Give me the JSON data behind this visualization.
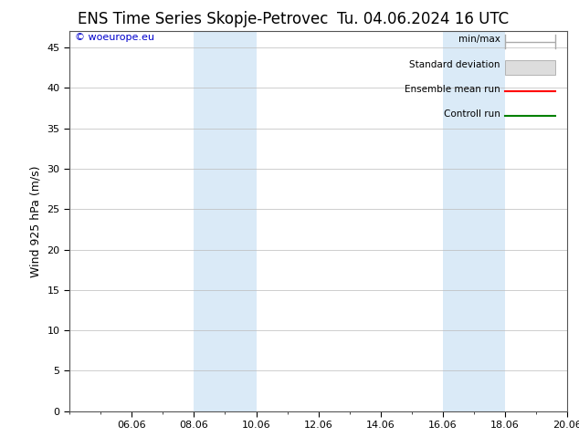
{
  "title": "ENS Time Series Skopje-Petrovec",
  "title_right": "Tu. 04.06.2024 16 UTC",
  "ylabel": "Wind 925 hPa (m/s)",
  "watermark": "© woeurope.eu",
  "ylim": [
    0,
    47
  ],
  "yticks": [
    0,
    5,
    10,
    15,
    20,
    25,
    30,
    35,
    40,
    45
  ],
  "x_labels": [
    "06.06",
    "08.06",
    "10.06",
    "12.06",
    "14.06",
    "16.06",
    "18.06",
    "20.06"
  ],
  "x_ticks_positions": [
    2,
    4,
    6,
    8,
    10,
    12,
    14,
    16
  ],
  "x_minor_ticks": [
    0,
    1,
    2,
    3,
    4,
    5,
    6,
    7,
    8,
    9,
    10,
    11,
    12,
    13,
    14,
    15,
    16
  ],
  "shaded_regions": [
    {
      "x_start": 4,
      "x_end": 6,
      "color": "#daeaf7"
    },
    {
      "x_start": 12,
      "x_end": 14,
      "color": "#daeaf7"
    }
  ],
  "bg_color": "#ffffff",
  "plot_bg_color": "#ffffff",
  "grid_color": "#bbbbbb",
  "spine_color": "#555555",
  "legend_items": [
    {
      "label": "min/max",
      "color": "#aaaaaa",
      "style": "minmax"
    },
    {
      "label": "Standard deviation",
      "color": "#cccccc",
      "style": "stddev"
    },
    {
      "label": "Ensemble mean run",
      "color": "#ff0000",
      "style": "line"
    },
    {
      "label": "Controll run",
      "color": "#008000",
      "style": "line"
    }
  ],
  "title_fontsize": 12,
  "tick_fontsize": 8,
  "label_fontsize": 9,
  "legend_fontsize": 7.5,
  "watermark_fontsize": 8
}
